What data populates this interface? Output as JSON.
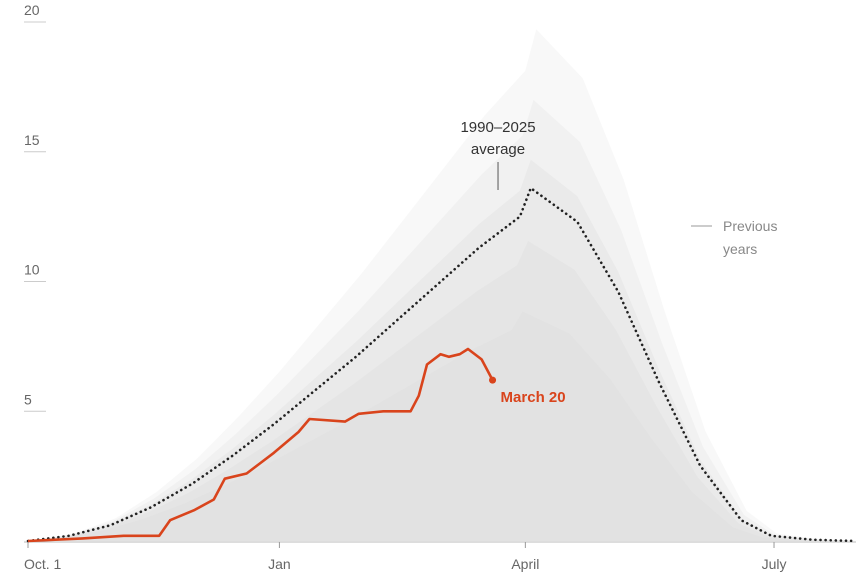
{
  "chart_data": {
    "type": "line",
    "title": "",
    "xlabel": "",
    "ylabel": "",
    "x_axis_type": "date",
    "xlim": [
      "2024-10-01",
      "2025-07-31"
    ],
    "ylim": [
      0,
      20
    ],
    "y_ticks": [
      5,
      10,
      15,
      20
    ],
    "x_ticks": [
      {
        "date": "2024-10-01",
        "label": "Oct. 1"
      },
      {
        "date": "2025-01-01",
        "label": "Jan"
      },
      {
        "date": "2025-04-01",
        "label": "April"
      },
      {
        "date": "2025-07-01",
        "label": "July"
      }
    ],
    "grid": false,
    "colors": {
      "current": "#d9441c",
      "average": "#222222",
      "previous_years": "#d9d9d9",
      "axis": "#cccccc"
    },
    "series": [
      {
        "name": "1990–2025 average",
        "style": "dotted",
        "points": [
          [
            "2024-10-01",
            0.0
          ],
          [
            "2024-10-16",
            0.2
          ],
          [
            "2024-10-31",
            0.6
          ],
          [
            "2024-11-15",
            1.3
          ],
          [
            "2024-11-30",
            2.2
          ],
          [
            "2024-12-15",
            3.3
          ],
          [
            "2024-12-30",
            4.5
          ],
          [
            "2025-01-14",
            5.8
          ],
          [
            "2025-01-29",
            7.1
          ],
          [
            "2025-02-13",
            8.5
          ],
          [
            "2025-02-28",
            9.9
          ],
          [
            "2025-03-15",
            11.3
          ],
          [
            "2025-03-30",
            12.5
          ],
          [
            "2025-04-03",
            13.6
          ],
          [
            "2025-04-20",
            12.3
          ],
          [
            "2025-05-05",
            9.6
          ],
          [
            "2025-05-20",
            6.1
          ],
          [
            "2025-06-04",
            2.9
          ],
          [
            "2025-06-19",
            0.8
          ],
          [
            "2025-06-30",
            0.2
          ],
          [
            "2025-07-15",
            0.05
          ],
          [
            "2025-07-31",
            0.0
          ]
        ]
      },
      {
        "name": "March 20",
        "style": "solid",
        "points": [
          [
            "2024-10-01",
            0.0
          ],
          [
            "2024-10-21",
            0.1
          ],
          [
            "2024-11-05",
            0.2
          ],
          [
            "2024-11-18",
            0.2
          ],
          [
            "2024-11-22",
            0.8
          ],
          [
            "2024-12-01",
            1.2
          ],
          [
            "2024-12-08",
            1.6
          ],
          [
            "2024-12-12",
            2.4
          ],
          [
            "2024-12-20",
            2.6
          ],
          [
            "2024-12-25",
            3.0
          ],
          [
            "2024-12-30",
            3.4
          ],
          [
            "2025-01-08",
            4.2
          ],
          [
            "2025-01-12",
            4.7
          ],
          [
            "2025-01-25",
            4.6
          ],
          [
            "2025-01-30",
            4.9
          ],
          [
            "2025-02-08",
            5.0
          ],
          [
            "2025-02-18",
            5.0
          ],
          [
            "2025-02-21",
            5.6
          ],
          [
            "2025-02-24",
            6.8
          ],
          [
            "2025-03-01",
            7.2
          ],
          [
            "2025-03-04",
            7.1
          ],
          [
            "2025-03-08",
            7.2
          ],
          [
            "2025-03-11",
            7.4
          ],
          [
            "2025-03-16",
            7.0
          ],
          [
            "2025-03-20",
            6.2
          ]
        ]
      }
    ],
    "annotations": [
      {
        "text_lines": [
          "1990–2025",
          "average"
        ]
      },
      {
        "text_lines": [
          "Previous",
          "years"
        ]
      },
      {
        "text": "March 20"
      }
    ]
  }
}
